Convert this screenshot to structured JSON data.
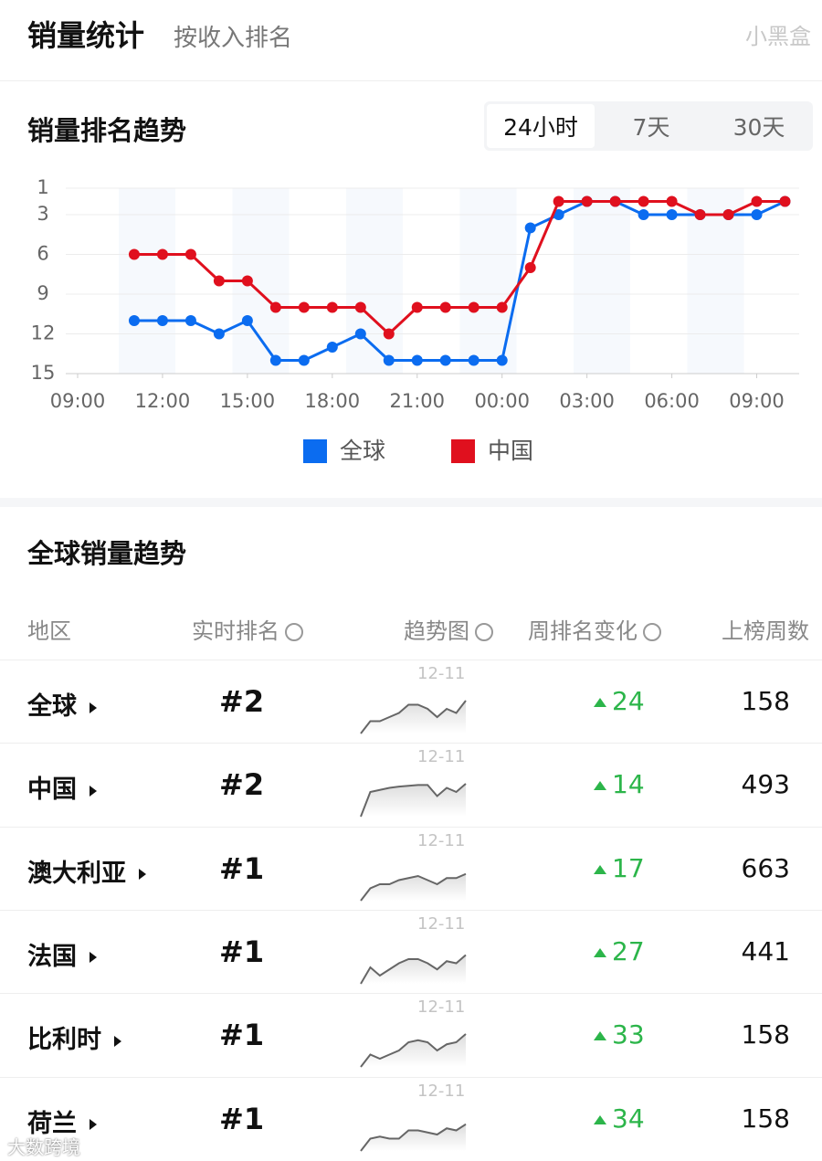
{
  "header": {
    "title": "销量统计",
    "subtitle": "按收入排名",
    "brand": "小黑盒"
  },
  "trend": {
    "title": "销量排名趋势",
    "tabs": [
      "24小时",
      "7天",
      "30天"
    ],
    "active_tab": 0,
    "chart_data": {
      "type": "line",
      "x": [
        2,
        3,
        4,
        5,
        6,
        7,
        8,
        9,
        10,
        11,
        12,
        13,
        14,
        15,
        16,
        17,
        18,
        19,
        20,
        21,
        22,
        23,
        24,
        25
      ],
      "xlim": [
        0,
        25.5
      ],
      "xticks": [
        {
          "value": 0,
          "label": "09:00"
        },
        {
          "value": 3,
          "label": "12:00"
        },
        {
          "value": 6,
          "label": "15:00"
        },
        {
          "value": 9,
          "label": "18:00"
        },
        {
          "value": 12,
          "label": "21:00"
        },
        {
          "value": 15,
          "label": "00:00"
        },
        {
          "value": 18,
          "label": "03:00"
        },
        {
          "value": 21,
          "label": "06:00"
        },
        {
          "value": 24,
          "label": "09:00"
        }
      ],
      "ylim": [
        1,
        15
      ],
      "y_inverted": true,
      "yticks": [
        1,
        3,
        6,
        9,
        12,
        15
      ],
      "grid": true,
      "legend": "bottom",
      "series": [
        {
          "name": "全球",
          "color": "#0b6cf0",
          "values": [
            11,
            11,
            11,
            12,
            11,
            14,
            14,
            13,
            12,
            14,
            14,
            14,
            14,
            14,
            4,
            3,
            2,
            2,
            3,
            3,
            3,
            3,
            3,
            2
          ]
        },
        {
          "name": "中国",
          "color": "#e0101e",
          "values": [
            6,
            6,
            6,
            8,
            8,
            10,
            10,
            10,
            10,
            12,
            10,
            10,
            10,
            10,
            7,
            2,
            2,
            2,
            2,
            2,
            3,
            3,
            2,
            2
          ]
        }
      ]
    }
  },
  "table": {
    "title": "全球销量趋势",
    "columns": [
      "地区",
      "实时排名",
      "趋势图",
      "周排名变化",
      "上榜周数"
    ],
    "trend_ylim": [
      0,
      10
    ],
    "rows": [
      {
        "region": "全球",
        "rank": "#2",
        "trend_label": "12-11",
        "trend": [
          0,
          3,
          3,
          4,
          5,
          7,
          7,
          6,
          4,
          6,
          5,
          8
        ],
        "change": 24,
        "weeks": 158
      },
      {
        "region": "中国",
        "rank": "#2",
        "trend_label": "12-11",
        "trend": [
          0,
          6,
          6.5,
          7,
          7.3,
          7.5,
          7.7,
          7.7,
          5,
          7,
          6,
          8
        ],
        "change": 14,
        "weeks": 493
      },
      {
        "region": "澳大利亚",
        "rank": "#1",
        "trend_label": "12-11",
        "trend": [
          0,
          3,
          4,
          4,
          5,
          5.5,
          6,
          5,
          4,
          5.5,
          5.5,
          6.5
        ],
        "change": 17,
        "weeks": 663
      },
      {
        "region": "法国",
        "rank": "#1",
        "trend_label": "12-11",
        "trend": [
          0,
          4,
          2,
          3.5,
          5,
          6,
          6,
          5,
          3.5,
          5.5,
          5,
          7
        ],
        "change": 27,
        "weeks": 441
      },
      {
        "region": "比利时",
        "rank": "#1",
        "trend_label": "12-11",
        "trend": [
          0,
          3,
          2,
          3,
          4,
          6,
          6.5,
          6,
          4,
          5.5,
          6,
          8
        ],
        "change": 33,
        "weeks": 158
      },
      {
        "region": "荷兰",
        "rank": "#1",
        "trend_label": "12-11",
        "trend": [
          0,
          3,
          3.5,
          3,
          3,
          5,
          5,
          4.5,
          4,
          5.5,
          5,
          6.5
        ],
        "change": 34,
        "weeks": 158
      }
    ]
  },
  "watermark": "大数跨境"
}
